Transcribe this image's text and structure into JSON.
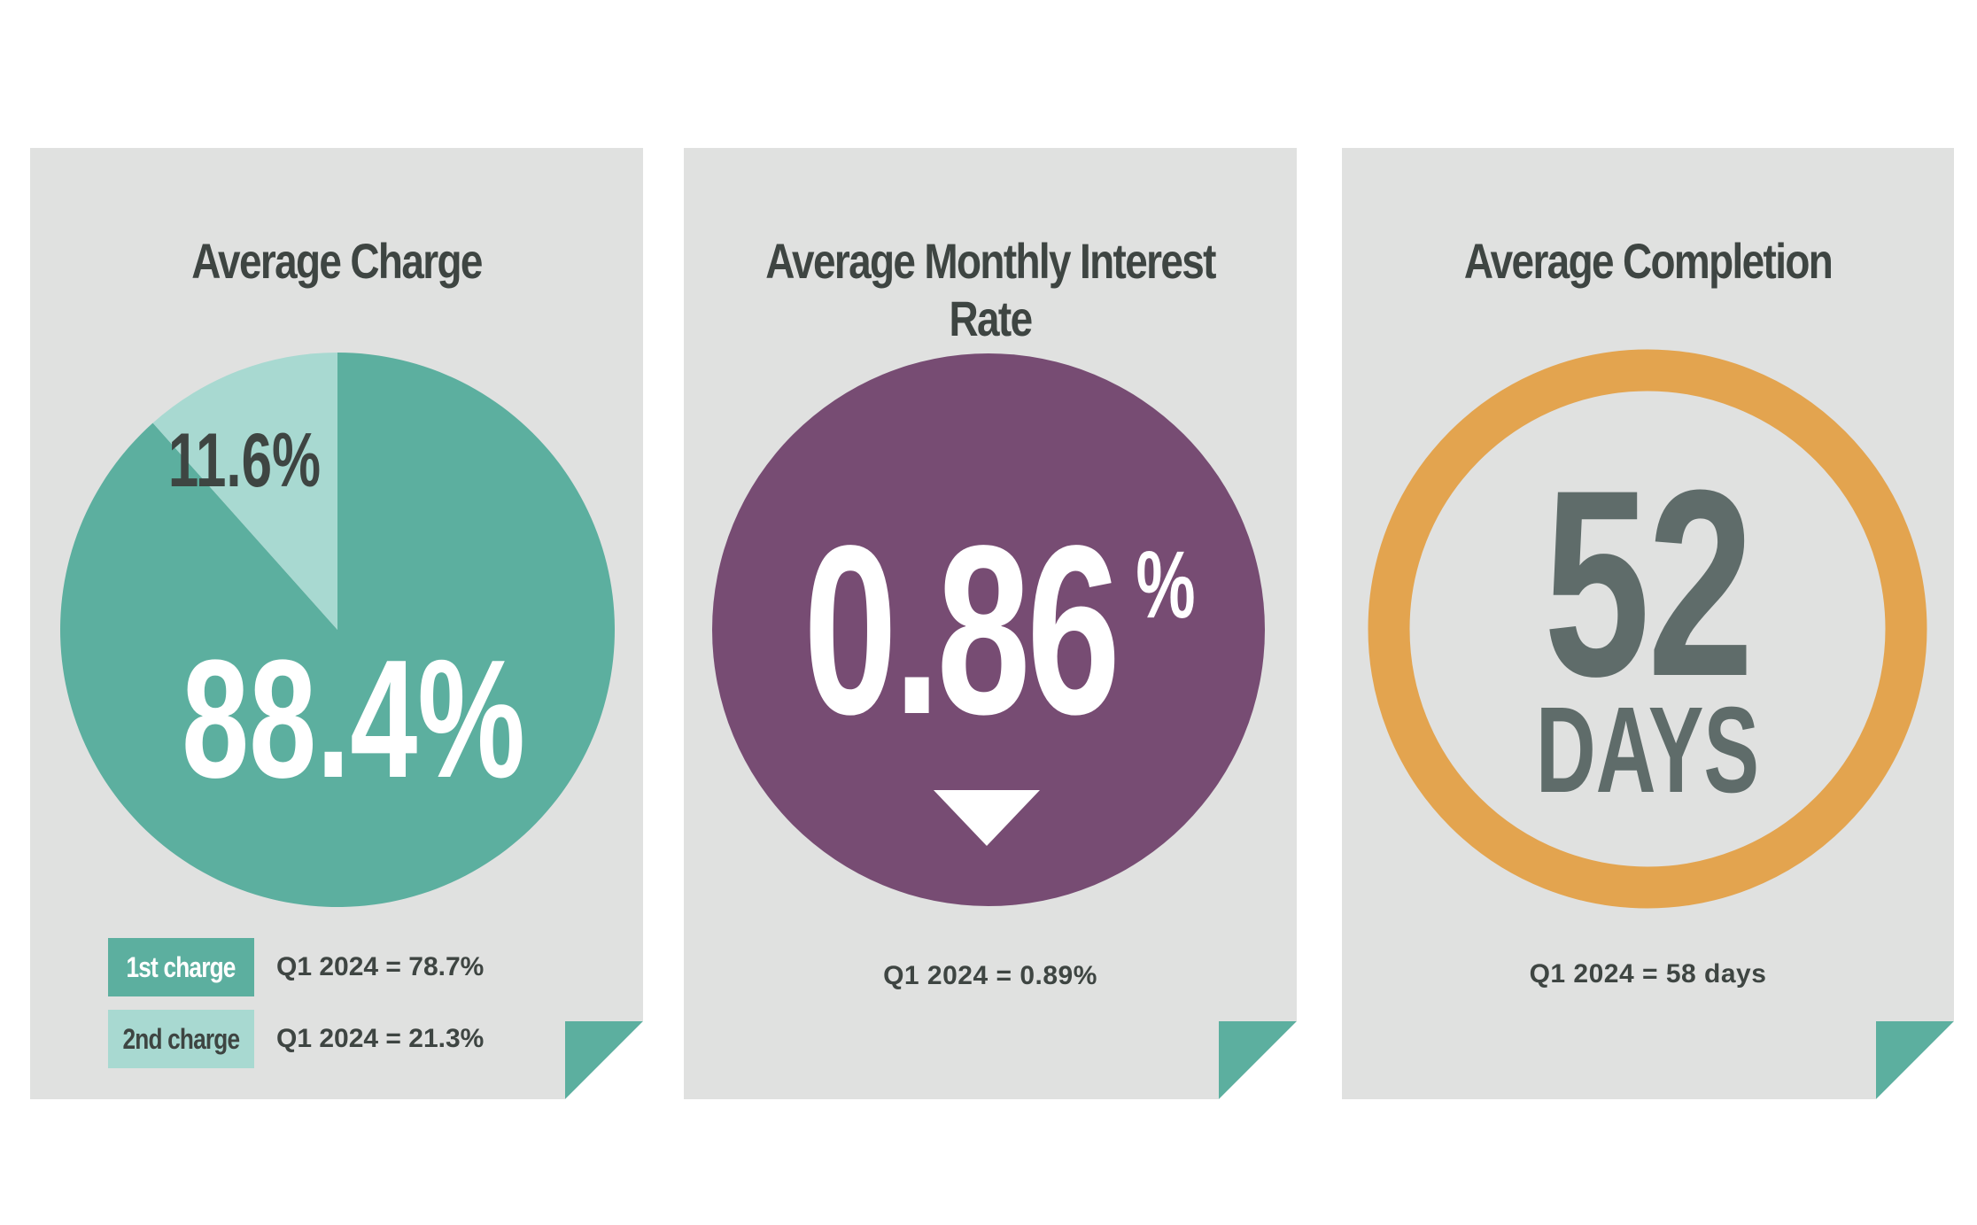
{
  "colors": {
    "card_bg": "#e0e1e0",
    "teal": "#5caf9f",
    "teal_light": "#a8d9d1",
    "purple": "#774c73",
    "orange": "#e3a44f",
    "dark_text": "#3e4542",
    "days_text": "#5f6c6a",
    "white": "#ffffff"
  },
  "icons": {
    "corner": "folded-corner",
    "rate_indicator": "down-triangle"
  },
  "chart_data": [
    {
      "type": "pie",
      "title": "Average Charge",
      "slices": [
        {
          "label": "1st charge",
          "value": 88.4,
          "display": "88.4%",
          "color": "#5caf9f"
        },
        {
          "label": "2nd charge",
          "value": 11.6,
          "display": "11.6%",
          "color": "#a8d9d1"
        }
      ],
      "legend": [
        {
          "label": "1st charge",
          "comparison": "Q1 2024 = 78.7%",
          "color": "#5caf9f"
        },
        {
          "label": "2nd charge",
          "comparison": "Q1 2024 = 21.3%",
          "color": "#a8d9d1"
        }
      ],
      "legend_position": "bottom"
    },
    {
      "type": "table",
      "title": "Average Monthly Interest Rate",
      "value": 0.86,
      "value_number": "0.86",
      "value_unit": "%",
      "trend": "down",
      "comparison": "Q1 2024 = 0.89%"
    },
    {
      "type": "table",
      "title": "Average Completion",
      "value": 52,
      "value_number": "52",
      "value_unit": "DAYS",
      "comparison": "Q1 2024 = 58 days"
    }
  ]
}
